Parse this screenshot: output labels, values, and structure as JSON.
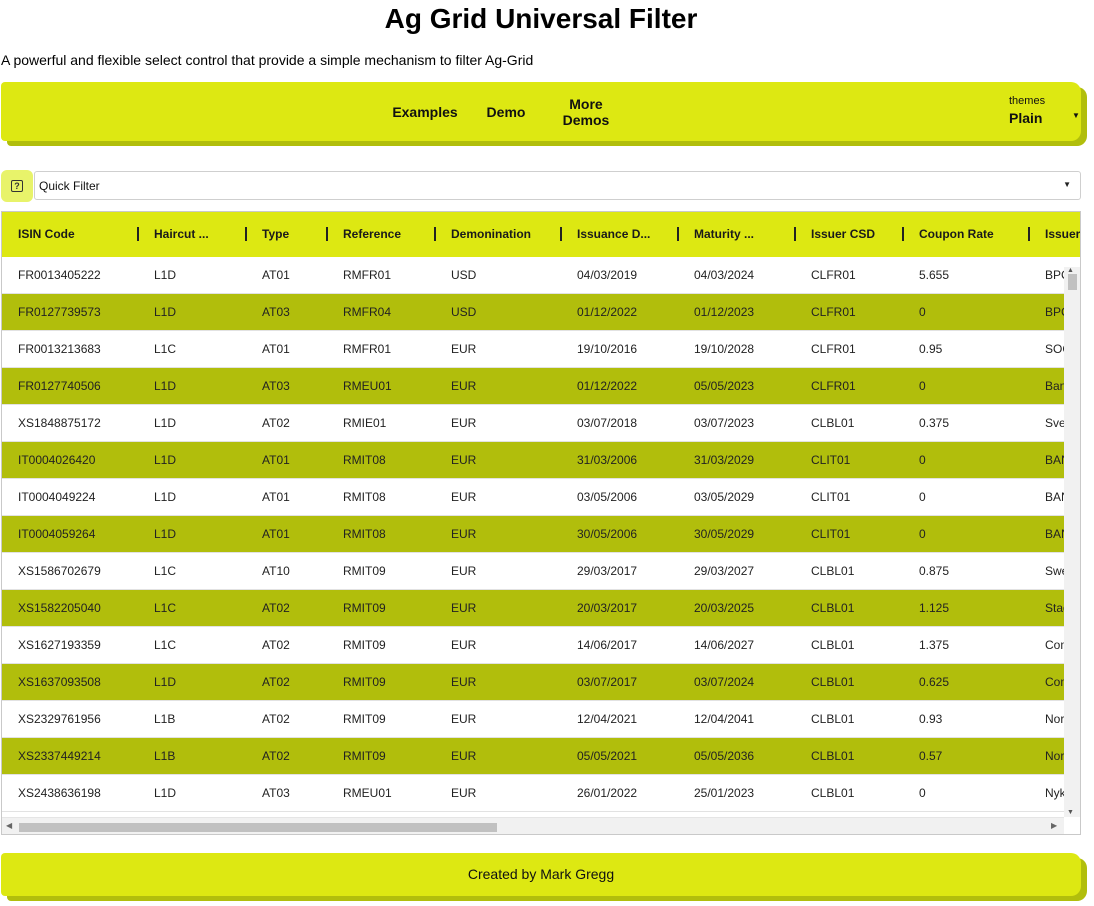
{
  "page": {
    "title": "Ag Grid Universal Filter",
    "subtitle": "A powerful and flexible select control that provide a simple mechanism to filter Ag-Grid"
  },
  "nav": {
    "examples": "Examples",
    "demo": "Demo",
    "more_demos_line1": "More",
    "more_demos_line2": "Demos",
    "themes_label": "themes",
    "themes_value": "Plain"
  },
  "filter": {
    "help_icon": "question-icon",
    "quick_filter_label": "Quick Filter"
  },
  "colors": {
    "accent": "#dde812",
    "accent_dark": "#b1be0c",
    "help_bg": "#e8f36a"
  },
  "grid": {
    "columns": [
      "ISIN Code",
      "Haircut ...",
      "Type",
      "Reference",
      "Demonination",
      "Issuance D...",
      "Maturity ...",
      "Issuer CSD",
      "Coupon Rate",
      "Issuer"
    ],
    "rows": [
      [
        "FR0013405222",
        "L1D",
        "AT01",
        "RMFR01",
        "USD",
        "04/03/2019",
        "04/03/2024",
        "CLFR01",
        "5.655",
        "BPCE"
      ],
      [
        "FR0127739573",
        "L1D",
        "AT03",
        "RMFR04",
        "USD",
        "01/12/2022",
        "01/12/2023",
        "CLFR01",
        "0",
        "BPCE"
      ],
      [
        "FR0013213683",
        "L1C",
        "AT01",
        "RMFR01",
        "EUR",
        "19/10/2016",
        "19/10/2028",
        "CLFR01",
        "0.95",
        "SOCIETE"
      ],
      [
        "FR0127740506",
        "L1D",
        "AT03",
        "RMEU01",
        "EUR",
        "01/12/2022",
        "05/05/2023",
        "CLFR01",
        "0",
        "Banque"
      ],
      [
        "XS1848875172",
        "L1D",
        "AT02",
        "RMIE01",
        "EUR",
        "03/07/2018",
        "03/07/2023",
        "CLBL01",
        "0.375",
        "Svenska"
      ],
      [
        "IT0004026420",
        "L1D",
        "AT01",
        "RMIT08",
        "EUR",
        "31/03/2006",
        "31/03/2029",
        "CLIT01",
        "0",
        "BANCA"
      ],
      [
        "IT0004049224",
        "L1D",
        "AT01",
        "RMIT08",
        "EUR",
        "03/05/2006",
        "03/05/2029",
        "CLIT01",
        "0",
        "BANCA"
      ],
      [
        "IT0004059264",
        "L1D",
        "AT01",
        "RMIT08",
        "EUR",
        "30/05/2006",
        "30/05/2029",
        "CLIT01",
        "0",
        "BANCA"
      ],
      [
        "XS1586702679",
        "L1C",
        "AT10",
        "RMIT09",
        "EUR",
        "29/03/2017",
        "29/03/2027",
        "CLBL01",
        "0.875",
        "Swedbank"
      ],
      [
        "XS1582205040",
        "L1C",
        "AT02",
        "RMIT09",
        "EUR",
        "20/03/2017",
        "20/03/2025",
        "CLBL01",
        "1.125",
        "Stadshypotek"
      ],
      [
        "XS1627193359",
        "L1C",
        "AT02",
        "RMIT09",
        "EUR",
        "14/06/2017",
        "14/06/2027",
        "CLBL01",
        "1.375",
        "Commonwealth"
      ],
      [
        "XS1637093508",
        "L1D",
        "AT02",
        "RMIT09",
        "EUR",
        "03/07/2017",
        "03/07/2024",
        "CLBL01",
        "0.625",
        "Commerzbank"
      ],
      [
        "XS2329761956",
        "L1B",
        "AT02",
        "RMIT09",
        "EUR",
        "12/04/2021",
        "12/04/2041",
        "CLBL01",
        "0.93",
        "Nordea"
      ],
      [
        "XS2337449214",
        "L1B",
        "AT02",
        "RMIT09",
        "EUR",
        "05/05/2021",
        "05/05/2036",
        "CLBL01",
        "0.57",
        "Nordea"
      ],
      [
        "XS2438636198",
        "L1D",
        "AT03",
        "RMEU01",
        "EUR",
        "26/01/2022",
        "25/01/2023",
        "CLBL01",
        "0",
        "Nykredit"
      ]
    ]
  },
  "footer": {
    "text": "Created by Mark Gregg"
  }
}
